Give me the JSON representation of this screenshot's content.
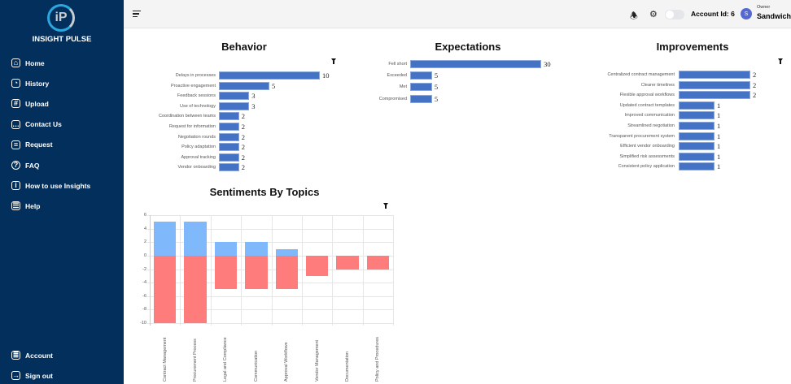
{
  "app": {
    "brand": "INSIGHT PULSE",
    "logo_text": "iP"
  },
  "sidebar": {
    "items": [
      {
        "label": "Home",
        "icon": "home-icon"
      },
      {
        "label": "History",
        "icon": "history-icon"
      },
      {
        "label": "Upload",
        "icon": "upload-icon"
      },
      {
        "label": "Contact Us",
        "icon": "chat-icon"
      },
      {
        "label": "Request",
        "icon": "request-icon"
      },
      {
        "label": "FAQ",
        "icon": "question-icon"
      },
      {
        "label": "How to use Insights",
        "icon": "info-icon"
      },
      {
        "label": "Help",
        "icon": "help-icon"
      }
    ],
    "bottom": [
      {
        "label": "Account",
        "icon": "account-icon"
      },
      {
        "label": "Sign out",
        "icon": "sign-out-icon"
      }
    ]
  },
  "header": {
    "account_label": "Account Id: 6",
    "avatar_initial": "S",
    "role": "Owner",
    "user": "Sandwich"
  },
  "colors": {
    "sidebar": "#022f5c",
    "bar": "#4472c4",
    "positive": "#7fb8fb",
    "negative": "#ff7c7c"
  },
  "chart_data": [
    {
      "type": "bar",
      "orientation": "horizontal",
      "title": "Behavior",
      "categories": [
        "Delays in processes",
        "Proactive engagement",
        "Feedback sessions",
        "Use of technology",
        "Coordination between teams",
        "Request for information",
        "Negotiation rounds",
        "Policy adaptation",
        "Approval tracking",
        "Vendor onboarding"
      ],
      "values": [
        10,
        5,
        3,
        3,
        2,
        2,
        2,
        2,
        2,
        2
      ]
    },
    {
      "type": "bar",
      "orientation": "horizontal",
      "title": "Expectations",
      "categories": [
        "Fell short",
        "Exceeded",
        "Met",
        "Compromised"
      ],
      "values": [
        30,
        5,
        5,
        5
      ]
    },
    {
      "type": "bar",
      "orientation": "horizontal",
      "title": "Improvements",
      "categories": [
        "Centralized contract management",
        "Clearer timelines",
        "Flexible approval workflows",
        "Updated contract templates",
        "Improved communication",
        "Streamlined negotiation",
        "Transparent procurement system",
        "Efficient vendor onboarding",
        "Simplified risk assessments",
        "Consistent policy application"
      ],
      "values": [
        2,
        2,
        2,
        1,
        1,
        1,
        1,
        1,
        1,
        1
      ]
    },
    {
      "type": "bar",
      "stacked": true,
      "title": "Sentiments By Topics",
      "categories": [
        "Contract Management",
        "Procurement Process",
        "Legal and Compliance",
        "Communication",
        "Approval Workflows",
        "Vendor Management",
        "Documentation",
        "Policy and Procedures"
      ],
      "series": [
        {
          "values": [
            5,
            5,
            2,
            2,
            1,
            0,
            0,
            0
          ],
          "color": "#7fb8fb"
        },
        {
          "values": [
            -10,
            -10,
            -5,
            -5,
            -5,
            -3,
            -2,
            -2
          ],
          "color": "#ff7c7c"
        }
      ],
      "ylim": [
        -10,
        6
      ],
      "yticks": [
        6,
        4,
        2,
        0,
        -2,
        -4,
        -6,
        -8,
        -10
      ],
      "grid": true
    }
  ]
}
